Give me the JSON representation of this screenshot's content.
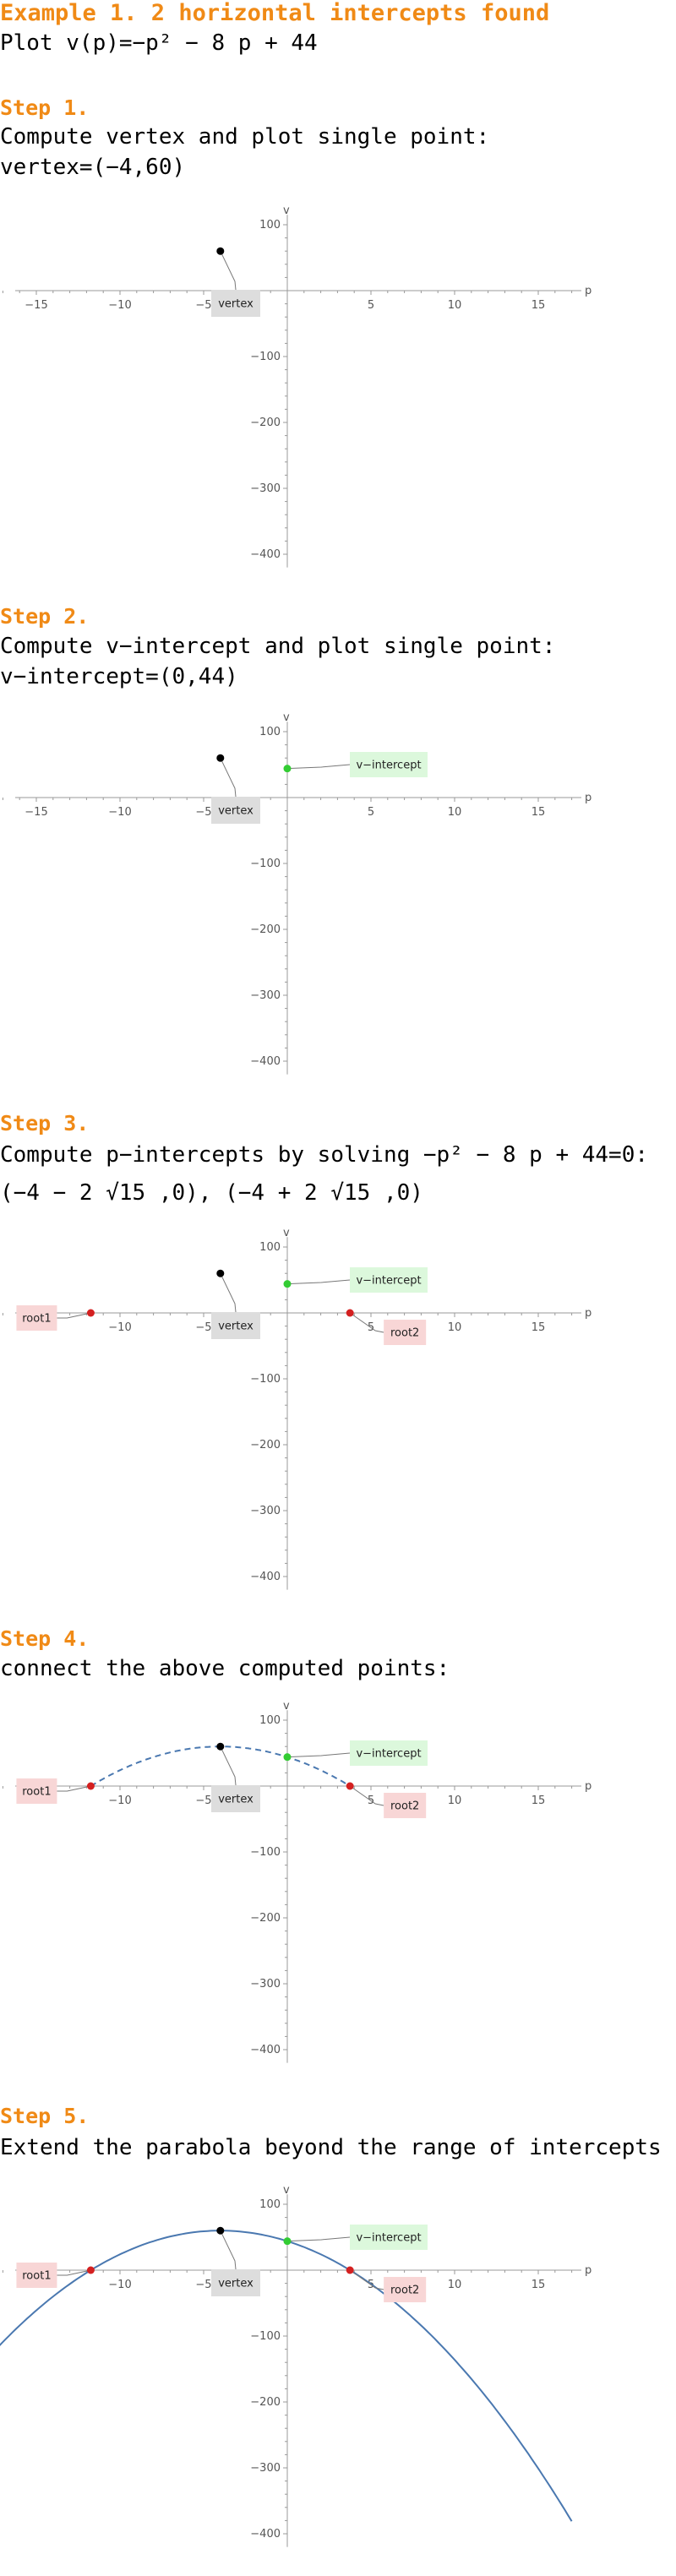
{
  "header": {
    "title": "Example 1. 2 horizontal intercepts found",
    "plot_line": "Plot v(p)=−p² − 8 p + 44"
  },
  "steps": [
    {
      "heading": "Step 1.",
      "text": "Compute vertex and plot single point:",
      "result": "vertex=(−4,60)"
    },
    {
      "heading": "Step 2.",
      "text": "Compute v−intercept and plot single point:",
      "result": "v−intercept=(0,44)"
    },
    {
      "heading": "Step 3.",
      "text": "Compute p−intercepts by solving −p² − 8 p + 44=0:",
      "result": "(−4 − 2 √15 ,0),  (−4 + 2 √15 ,0)"
    },
    {
      "heading": "Step 4.",
      "text": "connect the above computed points:"
    },
    {
      "heading": "Step 5.",
      "text": "Extend the parabola beyond the range of intercepts"
    }
  ],
  "colors": {
    "heading": "#f08a16",
    "curve": "#4a78b0",
    "vertex_point": "#000000",
    "v_intercept_point": "#33cc33",
    "root_point": "#d42020",
    "vertex_label_bg": "#dddddd",
    "v_intercept_label_bg": "#dcf8dc",
    "root_label_bg": "#f8d6d6"
  },
  "chart_data": [
    {
      "type": "scatter",
      "xlabel": "p",
      "ylabel": "v",
      "xlim": [
        -17,
        17
      ],
      "ylim": [
        -420,
        110
      ],
      "xticks": [
        -15,
        -10,
        -5,
        5,
        10,
        15
      ],
      "yticks": [
        100,
        -100,
        -200,
        -300,
        -400
      ],
      "points": [
        {
          "x": -4,
          "y": 60,
          "label": "vertex",
          "kind": "vertex"
        }
      ],
      "curve": "none"
    },
    {
      "type": "scatter",
      "xlabel": "p",
      "ylabel": "v",
      "xlim": [
        -17,
        17
      ],
      "ylim": [
        -420,
        110
      ],
      "xticks": [
        -15,
        -10,
        -5,
        5,
        10,
        15
      ],
      "yticks": [
        100,
        -100,
        -200,
        -300,
        -400
      ],
      "points": [
        {
          "x": -4,
          "y": 60,
          "label": "vertex",
          "kind": "vertex"
        },
        {
          "x": 0,
          "y": 44,
          "label": "v−intercept",
          "kind": "vint"
        }
      ],
      "curve": "none"
    },
    {
      "type": "scatter",
      "xlabel": "p",
      "ylabel": "v",
      "xlim": [
        -17,
        17
      ],
      "ylim": [
        -420,
        110
      ],
      "xticks": [
        -15,
        -10,
        -5,
        5,
        10,
        15
      ],
      "yticks": [
        100,
        -100,
        -200,
        -300,
        -400
      ],
      "points": [
        {
          "x": -4,
          "y": 60,
          "label": "vertex",
          "kind": "vertex"
        },
        {
          "x": 0,
          "y": 44,
          "label": "v−intercept",
          "kind": "vint"
        },
        {
          "x": -11.746,
          "y": 0,
          "label": "root1",
          "kind": "root"
        },
        {
          "x": 3.746,
          "y": 0,
          "label": "root2",
          "kind": "root"
        }
      ],
      "curve": "none"
    },
    {
      "type": "line",
      "xlabel": "p",
      "ylabel": "v",
      "xlim": [
        -17,
        17
      ],
      "ylim": [
        -420,
        110
      ],
      "xticks": [
        -15,
        -10,
        -5,
        5,
        10,
        15
      ],
      "yticks": [
        100,
        -100,
        -200,
        -300,
        -400
      ],
      "points": [
        {
          "x": -4,
          "y": 60,
          "label": "vertex",
          "kind": "vertex"
        },
        {
          "x": 0,
          "y": 44,
          "label": "v−intercept",
          "kind": "vint"
        },
        {
          "x": -11.746,
          "y": 0,
          "label": "root1",
          "kind": "root"
        },
        {
          "x": 3.746,
          "y": 0,
          "label": "root2",
          "kind": "root"
        }
      ],
      "curve": "dashed",
      "curve_domain": [
        -11.746,
        3.746
      ]
    },
    {
      "type": "line",
      "xlabel": "p",
      "ylabel": "v",
      "xlim": [
        -17,
        17
      ],
      "ylim": [
        -420,
        110
      ],
      "xticks": [
        -15,
        -10,
        -5,
        5,
        10,
        15
      ],
      "yticks": [
        100,
        -100,
        -200,
        -300,
        -400
      ],
      "points": [
        {
          "x": -4,
          "y": 60,
          "label": "vertex",
          "kind": "vertex"
        },
        {
          "x": 0,
          "y": 44,
          "label": "v−intercept",
          "kind": "vint"
        },
        {
          "x": -11.746,
          "y": 0,
          "label": "root1",
          "kind": "root"
        },
        {
          "x": 3.746,
          "y": 0,
          "label": "root2",
          "kind": "root"
        }
      ],
      "curve": "solid",
      "curve_domain": [
        -17.5,
        17
      ]
    }
  ]
}
